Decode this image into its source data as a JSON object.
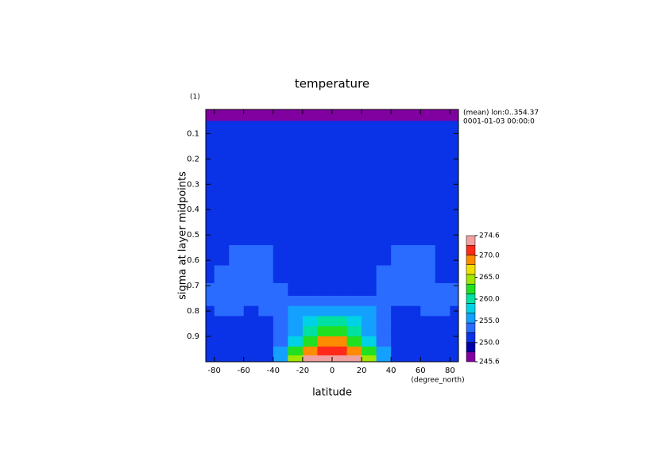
{
  "chart_data": {
    "type": "contour",
    "title": "temperature",
    "subtitle": "(1)",
    "annotations": [
      "(mean) lon:0..354.37",
      "0001-01-03 00:00:0"
    ],
    "xlabel": "latitude",
    "xunit": "(degree_north)",
    "ylabel": "sigma at layer midpoints",
    "xlim": [
      -85.76,
      85.76
    ],
    "ylim": [
      1.0,
      0.005
    ],
    "xticks": [
      -80,
      -60,
      -40,
      -20,
      0,
      20,
      40,
      60,
      80
    ],
    "yticks": [
      0.1,
      0.2,
      0.3,
      0.4,
      0.5,
      0.6,
      0.7,
      0.8,
      0.9
    ],
    "x": [
      -85,
      -75,
      -65,
      -55,
      -45,
      -35,
      -25,
      -15,
      -5,
      5,
      15,
      25,
      35,
      45,
      55,
      65,
      75,
      85
    ],
    "y": [
      0.02,
      0.08,
      0.2,
      0.35,
      0.5,
      0.58,
      0.66,
      0.72,
      0.76,
      0.8,
      0.84,
      0.88,
      0.92,
      0.96,
      0.99
    ],
    "z": [
      [
        246.5,
        246.5,
        246.5,
        246.5,
        246.5,
        246.5,
        246.5,
        246.5,
        246.5,
        246.5,
        246.5,
        246.5,
        246.5,
        246.5,
        246.5,
        246.5,
        246.5,
        246.5
      ],
      [
        251,
        251,
        251,
        251,
        251,
        251,
        251,
        251,
        251,
        251,
        251,
        251,
        251,
        251,
        251,
        251,
        251,
        251
      ],
      [
        251,
        251,
        251,
        251,
        251,
        251,
        251,
        251,
        251,
        251,
        251,
        251,
        251,
        251,
        251,
        251,
        251,
        251
      ],
      [
        251,
        251,
        251,
        251,
        251,
        251,
        251,
        251,
        251,
        251,
        251,
        251,
        251,
        251,
        251,
        251,
        251,
        251
      ],
      [
        251,
        251,
        251,
        251,
        251,
        251,
        251,
        251,
        251,
        251,
        251,
        251,
        251,
        251,
        251,
        251,
        251,
        251
      ],
      [
        251,
        251,
        253,
        253,
        253,
        251,
        251,
        251,
        251,
        251,
        251,
        251,
        251,
        253,
        253,
        253,
        251,
        251
      ],
      [
        251,
        253,
        253,
        253,
        253,
        251,
        251,
        251,
        251,
        251,
        251,
        251,
        253,
        253,
        253,
        253,
        251,
        251
      ],
      [
        253,
        253,
        253,
        253,
        253,
        253,
        251,
        251,
        251,
        251,
        251,
        251,
        253,
        253,
        253,
        253,
        253,
        253
      ],
      [
        253,
        253,
        253,
        253,
        253,
        253,
        253,
        253,
        253,
        253,
        253,
        253,
        253,
        253,
        253,
        253,
        253,
        253
      ],
      [
        251,
        253,
        253,
        251,
        253,
        253,
        255,
        256,
        256,
        256,
        256,
        255,
        253,
        251,
        251,
        253,
        253,
        251
      ],
      [
        251,
        251,
        251,
        251,
        251,
        253,
        255,
        257.5,
        260,
        260,
        257.5,
        255,
        253,
        251,
        251,
        251,
        251,
        251
      ],
      [
        251,
        251,
        251,
        251,
        251,
        253,
        256,
        260,
        262,
        262,
        260,
        256,
        253,
        251,
        251,
        251,
        251,
        251
      ],
      [
        251,
        251,
        251,
        251,
        251,
        253,
        258,
        263,
        268,
        268,
        263,
        258,
        253,
        251,
        251,
        251,
        251,
        251
      ],
      [
        251,
        251,
        251,
        251,
        252,
        255,
        262,
        268,
        271,
        271,
        268,
        262,
        255,
        252,
        251,
        251,
        251,
        251
      ],
      [
        251,
        251,
        251,
        251,
        252,
        256,
        265,
        272.5,
        273.5,
        273.5,
        272.5,
        265,
        256,
        252,
        251,
        251,
        251,
        251
      ]
    ],
    "clim": [
      245.6,
      274.6
    ],
    "cticks": [
      245.6,
      {
        "value": 250,
        "label": "250.0"
      },
      {
        "value": 255,
        "label": "255.0"
      },
      {
        "value": 260,
        "label": "260.0"
      },
      {
        "value": 265,
        "label": "265.0"
      },
      {
        "value": 270,
        "label": "270.0"
      },
      274.6
    ],
    "colors": [
      "#8000a0",
      "#0000a8",
      "#0a32e6",
      "#2a6cff",
      "#14a0ff",
      "#00d2e6",
      "#00e0a0",
      "#20e020",
      "#a0e600",
      "#f0e000",
      "#ff8c00",
      "#ff2a1a",
      "#f0a0a0"
    ]
  }
}
